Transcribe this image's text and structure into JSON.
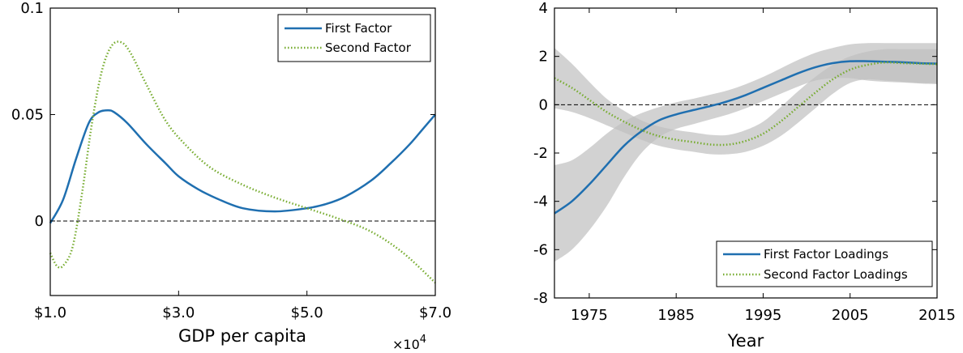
{
  "chart_data": [
    {
      "type": "line",
      "title": "",
      "xlabel": "GDP per capita",
      "ylabel": "",
      "x_multiplier_label": "×10",
      "x_multiplier_exp": "4",
      "xlim": [
        1.0,
        7.0
      ],
      "ylim": [
        -0.035,
        0.1
      ],
      "xticks": [
        1.0,
        3.0,
        5.0,
        7.0
      ],
      "xtick_labels": [
        "$1.0",
        "$3.0",
        "$5.0",
        "$7.0"
      ],
      "yticks": [
        0,
        0.05,
        0.1
      ],
      "ytick_labels": [
        "0",
        "0.05",
        "0.1"
      ],
      "zero_line": true,
      "grid": false,
      "legend_position": "top-right",
      "series": [
        {
          "name": "First Factor",
          "style": "solid",
          "color": "#1f6fb0",
          "x": [
            1.0,
            1.2,
            1.4,
            1.6,
            1.75,
            1.9,
            2.0,
            2.2,
            2.5,
            2.8,
            3.0,
            3.3,
            3.6,
            4.0,
            4.5,
            5.0,
            5.3,
            5.6,
            6.0,
            6.3,
            6.6,
            6.8,
            7.0
          ],
          "y": [
            -0.001,
            0.01,
            0.029,
            0.046,
            0.051,
            0.052,
            0.051,
            0.046,
            0.036,
            0.027,
            0.021,
            0.015,
            0.0105,
            0.006,
            0.0045,
            0.006,
            0.008,
            0.0115,
            0.019,
            0.027,
            0.036,
            0.043,
            0.05
          ]
        },
        {
          "name": "Second Factor",
          "style": "dotted",
          "color": "#77ac30",
          "x": [
            1.0,
            1.1,
            1.2,
            1.35,
            1.5,
            1.65,
            1.8,
            1.95,
            2.1,
            2.25,
            2.5,
            2.8,
            3.1,
            3.5,
            4.0,
            4.5,
            5.0,
            5.5,
            6.0,
            6.5,
            7.0
          ],
          "y": [
            -0.015,
            -0.021,
            -0.021,
            -0.012,
            0.014,
            0.046,
            0.07,
            0.082,
            0.084,
            0.079,
            0.064,
            0.047,
            0.036,
            0.025,
            0.017,
            0.011,
            0.006,
            0.001,
            -0.005,
            -0.015,
            -0.029
          ]
        }
      ]
    },
    {
      "type": "line",
      "title": "",
      "xlabel": "Year",
      "ylabel": "",
      "xlim": [
        1971,
        2015
      ],
      "ylim": [
        -8,
        4
      ],
      "xticks": [
        1975,
        1985,
        1995,
        2005,
        2015
      ],
      "xtick_labels": [
        "1975",
        "1985",
        "1995",
        "2005",
        "2015"
      ],
      "yticks": [
        -8,
        -6,
        -4,
        -2,
        0,
        2,
        4
      ],
      "ytick_labels": [
        "-8",
        "-6",
        "-4",
        "-2",
        "0",
        "2",
        "4"
      ],
      "zero_line": true,
      "grid": false,
      "legend_position": "bottom-right",
      "series": [
        {
          "name": "First Factor Loadings",
          "style": "solid",
          "color": "#1f6fb0",
          "band_color": "#bfbfbf",
          "x": [
            1971,
            1973,
            1975,
            1977,
            1979,
            1981,
            1983,
            1985,
            1987,
            1989,
            1991,
            1993,
            1995,
            1997,
            1999,
            2001,
            2003,
            2005,
            2007,
            2009,
            2011,
            2013,
            2015
          ],
          "y": [
            -4.5,
            -4.0,
            -3.3,
            -2.5,
            -1.7,
            -1.1,
            -0.65,
            -0.4,
            -0.22,
            -0.05,
            0.15,
            0.4,
            0.7,
            1.0,
            1.3,
            1.55,
            1.72,
            1.8,
            1.8,
            1.78,
            1.76,
            1.72,
            1.7
          ],
          "lower": [
            -6.5,
            -6.0,
            -5.2,
            -4.2,
            -3.0,
            -2.0,
            -1.35,
            -1.0,
            -0.8,
            -0.6,
            -0.4,
            -0.15,
            0.15,
            0.45,
            0.75,
            1.0,
            1.1,
            1.1,
            1.0,
            0.95,
            0.92,
            0.88,
            0.85
          ],
          "upper": [
            -2.5,
            -2.3,
            -1.8,
            -1.2,
            -0.7,
            -0.35,
            -0.1,
            0.1,
            0.25,
            0.42,
            0.6,
            0.85,
            1.15,
            1.5,
            1.85,
            2.15,
            2.35,
            2.5,
            2.55,
            2.55,
            2.55,
            2.55,
            2.55
          ]
        },
        {
          "name": "Second Factor Loadings",
          "style": "dotted",
          "color": "#77ac30",
          "band_color": "#bfbfbf",
          "x": [
            1971,
            1973,
            1975,
            1977,
            1979,
            1981,
            1983,
            1985,
            1987,
            1989,
            1991,
            1993,
            1995,
            1997,
            1999,
            2001,
            2003,
            2005,
            2007,
            2009,
            2011,
            2013,
            2015
          ],
          "y": [
            1.1,
            0.7,
            0.2,
            -0.3,
            -0.7,
            -1.05,
            -1.3,
            -1.45,
            -1.55,
            -1.65,
            -1.65,
            -1.5,
            -1.2,
            -0.7,
            -0.1,
            0.5,
            1.05,
            1.45,
            1.65,
            1.75,
            1.72,
            1.7,
            1.68
          ],
          "lower": [
            -0.15,
            -0.3,
            -0.55,
            -0.85,
            -1.15,
            -1.45,
            -1.7,
            -1.85,
            -1.95,
            -2.05,
            -2.05,
            -1.95,
            -1.7,
            -1.3,
            -0.75,
            -0.15,
            0.45,
            0.9,
            1.05,
            1.0,
            0.95,
            0.9,
            0.88
          ],
          "upper": [
            2.35,
            1.7,
            0.95,
            0.25,
            -0.25,
            -0.65,
            -0.9,
            -1.05,
            -1.15,
            -1.25,
            -1.25,
            -1.05,
            -0.7,
            -0.1,
            0.55,
            1.15,
            1.65,
            2.0,
            2.2,
            2.3,
            2.3,
            2.3,
            2.3
          ]
        }
      ]
    }
  ]
}
